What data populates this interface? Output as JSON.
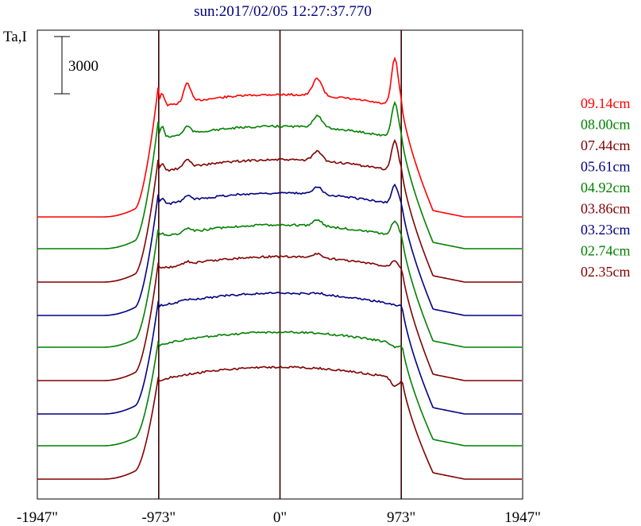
{
  "chart_data": {
    "type": "line",
    "title": "sun:2017/02/05 12:27:37.770",
    "ylabel": "Ta,I",
    "scale_bar_label": "3000",
    "xlim": [
      -1947,
      1947
    ],
    "x_ticks": [
      {
        "value": -1947,
        "label": "-1947\""
      },
      {
        "value": -973,
        "label": "-973\""
      },
      {
        "value": 0,
        "label": "0\""
      },
      {
        "value": 973,
        "label": "973\""
      },
      {
        "value": 1947,
        "label": "1947\""
      }
    ],
    "vertical_lines": [
      -973,
      0,
      973
    ],
    "series": [
      {
        "name": "09.14cm",
        "color": "#ff0000",
        "base": 273,
        "disk": 125,
        "limb": 145,
        "bump": 22,
        "spike": 60,
        "shoulder": 40
      },
      {
        "name": "08.00cm",
        "color": "#008000",
        "base": 313,
        "disk": 165,
        "limb": 123,
        "bump": 15,
        "spike": 44,
        "shoulder": 16
      },
      {
        "name": "07.44cm",
        "color": "#800000",
        "base": 355,
        "disk": 207,
        "limb": 83,
        "bump": 12,
        "spike": 38,
        "shoulder": 16
      },
      {
        "name": "05.61cm",
        "color": "#000080",
        "base": 397,
        "disk": 249,
        "limb": 71,
        "bump": 10,
        "spike": 24,
        "shoulder": 10
      },
      {
        "name": "04.92cm",
        "color": "#008000",
        "base": 437,
        "disk": 289,
        "limb": 43,
        "bump": 8,
        "spike": 20,
        "shoulder": 8
      },
      {
        "name": "03.86cm",
        "color": "#800000",
        "base": 479,
        "disk": 329,
        "limb": 19,
        "bump": 5,
        "spike": 10,
        "shoulder": 5
      },
      {
        "name": "03.23cm",
        "color": "#000080",
        "base": 521,
        "disk": 375,
        "limb": 0,
        "bump": 2,
        "spike": 0,
        "shoulder": 3
      },
      {
        "name": "02.74cm",
        "color": "#008000",
        "base": 561,
        "disk": 424,
        "limb": -10,
        "bump": 0,
        "spike": -5,
        "shoulder": 2
      },
      {
        "name": "02.35cm",
        "color": "#800000",
        "base": 603,
        "disk": 468,
        "limb": -20,
        "bump": 0,
        "spike": -10,
        "shoulder": 0
      }
    ]
  }
}
